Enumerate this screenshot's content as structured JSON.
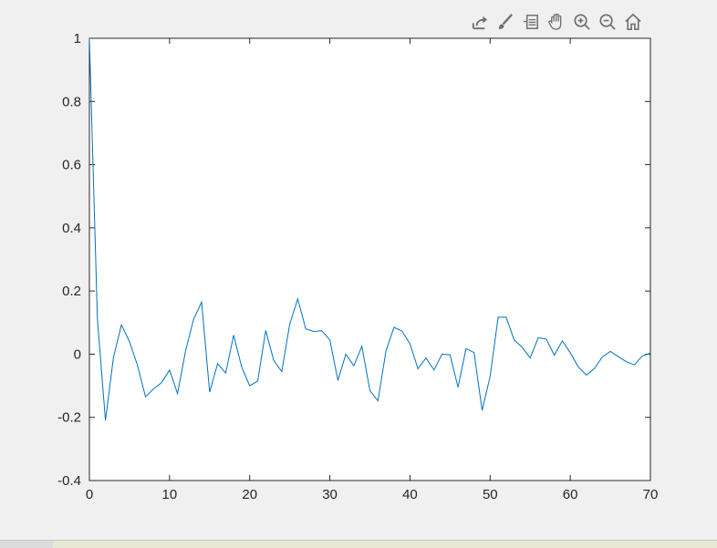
{
  "toolbar": {
    "icons": [
      "export-icon",
      "brush-icon",
      "legend-icon",
      "pan-hand-icon",
      "zoom-in-icon",
      "zoom-out-icon",
      "home-icon"
    ],
    "icon_color": "#707070"
  },
  "chart_data": {
    "type": "line",
    "title": "",
    "xlabel": "",
    "ylabel": "",
    "xlim": [
      0,
      70
    ],
    "ylim": [
      -0.4,
      1
    ],
    "grid": false,
    "line_color": "#0072bd",
    "xticks": [
      0,
      10,
      20,
      30,
      40,
      50,
      60,
      70
    ],
    "xtick_labels": [
      "0",
      "10",
      "20",
      "30",
      "40",
      "50",
      "60",
      "70"
    ],
    "yticks": [
      -0.4,
      -0.2,
      0,
      0.2,
      0.4,
      0.6,
      0.8,
      1
    ],
    "ytick_labels": [
      "-0.4",
      "-0.2",
      "0",
      "0.2",
      "0.4",
      "0.6",
      "0.8",
      "1"
    ],
    "x": [
      0,
      1,
      2,
      3,
      4,
      5,
      6,
      7,
      8,
      9,
      10,
      11,
      12,
      13,
      14,
      15,
      16,
      17,
      18,
      19,
      20,
      21,
      22,
      23,
      24,
      25,
      26,
      27,
      28,
      29,
      30,
      31,
      32,
      33,
      34,
      35,
      36,
      37,
      38,
      39,
      40,
      41,
      42,
      43,
      44,
      45,
      46,
      47,
      48,
      49,
      50,
      51,
      52,
      53,
      54,
      55,
      56,
      57,
      58,
      59,
      60,
      61,
      62,
      63,
      64,
      65,
      66,
      67,
      68,
      69,
      70
    ],
    "y": [
      1,
      0.11,
      -0.21,
      -0.01,
      0.093,
      0.04,
      -0.035,
      -0.135,
      -0.11,
      -0.09,
      -0.05,
      -0.125,
      0.01,
      0.11,
      0.165,
      -0.12,
      -0.03,
      -0.06,
      0.06,
      -0.04,
      -0.1,
      -0.085,
      0.075,
      -0.02,
      -0.055,
      0.095,
      0.175,
      0.08,
      0.072,
      0.074,
      0.045,
      -0.083,
      0,
      -0.037,
      0.025,
      -0.115,
      -0.148,
      0.01,
      0.085,
      0.073,
      0.033,
      -0.046,
      -0.012,
      -0.05,
      0,
      -0.002,
      -0.105,
      0.018,
      0.005,
      -0.178,
      -0.07,
      0.117,
      0.117,
      0.045,
      0.022,
      -0.012,
      0.052,
      0.048,
      -0.003,
      0.042,
      0.005,
      -0.04,
      -0.066,
      -0.046,
      -0.009,
      0.009,
      -0.008,
      -0.024,
      -0.034,
      -0.005,
      0.003
    ]
  }
}
